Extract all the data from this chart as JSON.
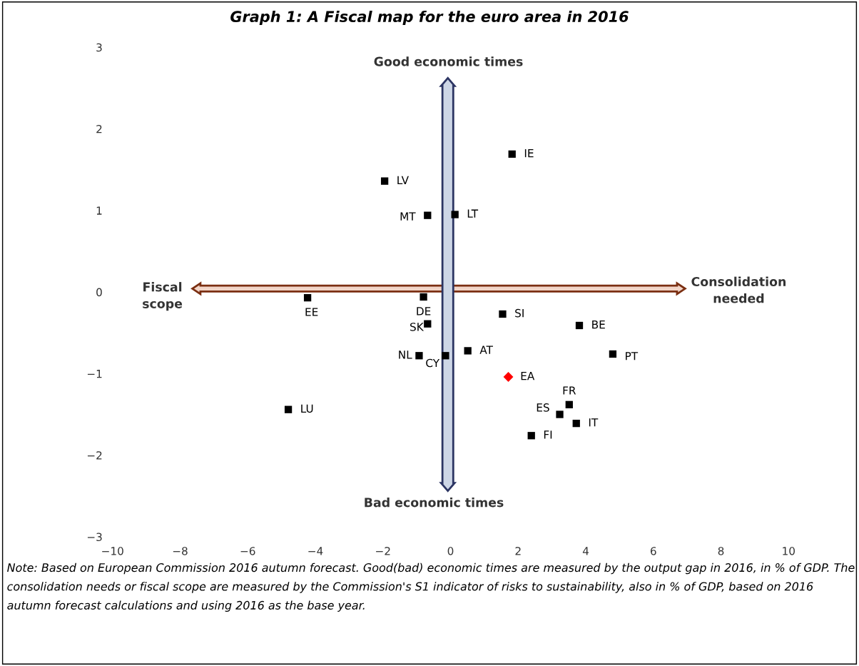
{
  "chart_data": {
    "type": "scatter",
    "title": "Graph 1: A Fiscal map for the euro area in 2016",
    "xlim": [
      -10,
      10
    ],
    "xticks": [
      -10,
      -8,
      -6,
      -4,
      -2,
      0,
      2,
      4,
      6,
      8,
      10
    ],
    "ylim": [
      -3,
      3
    ],
    "yticks": [
      -3,
      -2,
      -1,
      0,
      1,
      2,
      3
    ],
    "grid": false,
    "legend": false,
    "series": [
      {
        "color": "#000000",
        "marker": "square",
        "x": [
          -1.95,
          -0.68,
          0.13,
          -4.23,
          -0.8,
          1.54,
          -0.68,
          0.51,
          -0.93,
          -0.15,
          3.81,
          4.8,
          3.51,
          3.23,
          3.72,
          2.39,
          -4.8,
          1.82
        ],
        "values": [
          1.36,
          0.94,
          0.95,
          -0.07,
          -0.06,
          -0.27,
          -0.39,
          -0.72,
          -0.78,
          -0.78,
          -0.41,
          -0.76,
          -1.38,
          -1.5,
          -1.61,
          -1.76,
          -1.44,
          1.69
        ]
      },
      {
        "color": "#ff0000",
        "marker": "diamond",
        "x": [
          1.71
        ],
        "values": [
          -1.04
        ]
      }
    ],
    "annotations": [
      "Good economic times",
      "Bad economic times",
      "Fiscal\nscope",
      "Consolidation\nneeded",
      "Note: Based on European Commission 2016 autumn forecast. Good(bad) economic times are measured by the output gap in 2016, in % of GDP. The consolidation needs or fiscal scope are measured by the Commission's S1 indicator of risks to sustainability, also in % of GDP, based on 2016 autumn forecast calculations and using 2016 as the base year.",
      {
        "text": "LV",
        "x": -1.95,
        "y": 1.36
      },
      {
        "text": "MT",
        "x": -0.68,
        "y": 0.94
      },
      {
        "text": "LT",
        "x": 0.13,
        "y": 0.95
      },
      {
        "text": "EE",
        "x": -4.23,
        "y": -0.07
      },
      {
        "text": "DE",
        "x": -0.8,
        "y": -0.06
      },
      {
        "text": "SI",
        "x": 1.54,
        "y": -0.27
      },
      {
        "text": "SK",
        "x": -0.68,
        "y": -0.39
      },
      {
        "text": "AT",
        "x": 0.51,
        "y": -0.72
      },
      {
        "text": "NL",
        "x": -0.93,
        "y": -0.78
      },
      {
        "text": "CY",
        "x": -0.15,
        "y": -0.78
      },
      {
        "text": "BE",
        "x": 3.81,
        "y": -0.41
      },
      {
        "text": "PT",
        "x": 4.8,
        "y": -0.76
      },
      {
        "text": "FR",
        "x": 3.51,
        "y": -1.38
      },
      {
        "text": "ES",
        "x": 3.23,
        "y": -1.5
      },
      {
        "text": "IT",
        "x": 3.72,
        "y": -1.61
      },
      {
        "text": "FI",
        "x": 2.39,
        "y": -1.76
      },
      {
        "text": "LU",
        "x": -4.8,
        "y": -1.44
      },
      {
        "text": "IE",
        "x": 1.82,
        "y": 1.69
      },
      {
        "text": "EA",
        "x": 1.71,
        "y": -1.04
      }
    ]
  }
}
